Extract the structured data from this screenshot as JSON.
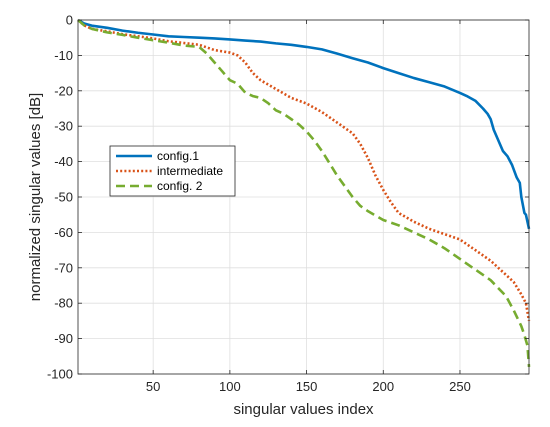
{
  "chart_data": {
    "type": "line",
    "title": "",
    "xlabel": "singular values index",
    "ylabel": "normalized singular values [dB]",
    "xlim": [
      1,
      295
    ],
    "ylim": [
      -100,
      0
    ],
    "xticks": [
      50,
      100,
      150,
      200,
      250
    ],
    "yticks": [
      0,
      -10,
      -20,
      -30,
      -40,
      -50,
      -60,
      -70,
      -80,
      -90,
      -100
    ],
    "grid": true,
    "legend_position": "middle-left",
    "series": [
      {
        "name": "config.1",
        "color": "#0072BD",
        "style": "solid",
        "x": [
          1,
          5,
          10,
          20,
          30,
          40,
          50,
          60,
          70,
          80,
          90,
          100,
          110,
          120,
          130,
          140,
          150,
          160,
          170,
          180,
          190,
          200,
          210,
          220,
          230,
          240,
          250,
          255,
          260,
          265,
          268,
          270,
          272,
          275,
          278,
          281,
          284,
          287,
          289,
          290,
          292,
          293,
          295
        ],
        "y": [
          0,
          -1,
          -1.6,
          -2.2,
          -3,
          -3.6,
          -4.1,
          -4.6,
          -4.8,
          -5,
          -5.2,
          -5.5,
          -5.8,
          -6.1,
          -6.6,
          -7,
          -7.6,
          -8.3,
          -9.5,
          -10.8,
          -12,
          -13.6,
          -15,
          -16.4,
          -17.6,
          -18.8,
          -20.6,
          -21.6,
          -22.8,
          -25,
          -26.5,
          -28,
          -31,
          -34,
          -37,
          -38.5,
          -41,
          -44.5,
          -46,
          -50,
          -54.5,
          -55,
          -59
        ]
      },
      {
        "name": "intermediate",
        "color": "#D95319",
        "style": "dotted",
        "x": [
          1,
          5,
          10,
          20,
          30,
          40,
          50,
          60,
          70,
          80,
          90,
          100,
          105,
          110,
          115,
          120,
          130,
          140,
          150,
          160,
          170,
          180,
          185,
          190,
          195,
          200,
          205,
          210,
          220,
          230,
          240,
          250,
          260,
          270,
          280,
          285,
          290,
          293,
          295
        ],
        "y": [
          0,
          -1.5,
          -2.5,
          -3.2,
          -4,
          -4.6,
          -5.2,
          -6,
          -6.5,
          -7,
          -8.5,
          -9.2,
          -10,
          -12,
          -15,
          -17,
          -19.5,
          -22,
          -23.6,
          -26,
          -29,
          -32,
          -35,
          -39,
          -44,
          -48,
          -51.5,
          -54.5,
          -57,
          -59,
          -60.5,
          -62,
          -65,
          -68,
          -72,
          -74,
          -77.5,
          -80,
          -85
        ]
      },
      {
        "name": "config. 2",
        "color": "#77AC30",
        "style": "dashed",
        "x": [
          1,
          5,
          10,
          20,
          30,
          40,
          50,
          60,
          70,
          80,
          85,
          90,
          95,
          100,
          105,
          110,
          115,
          120,
          125,
          130,
          135,
          140,
          145,
          150,
          155,
          160,
          165,
          170,
          175,
          180,
          185,
          190,
          200,
          210,
          220,
          230,
          240,
          250,
          260,
          270,
          280,
          285,
          290,
          292,
          294,
          295
        ],
        "y": [
          0,
          -1.5,
          -2.5,
          -3.5,
          -4.2,
          -5,
          -5.7,
          -6.4,
          -7.2,
          -7.6,
          -9.5,
          -12,
          -14.5,
          -17,
          -18,
          -20.5,
          -21.5,
          -22,
          -23.5,
          -25.5,
          -26.5,
          -28,
          -29.5,
          -31.5,
          -34,
          -37,
          -40.5,
          -44,
          -47,
          -50,
          -52.5,
          -54,
          -56.5,
          -58,
          -60,
          -62,
          -64.5,
          -67.5,
          -70.5,
          -73.5,
          -78,
          -82,
          -86.5,
          -89,
          -92,
          -98
        ]
      }
    ]
  }
}
